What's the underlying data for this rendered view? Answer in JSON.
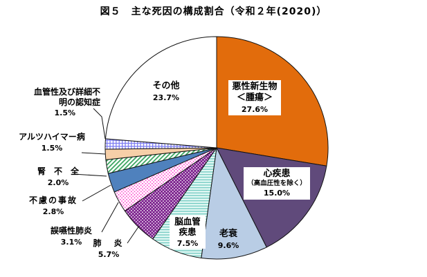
{
  "title": "図５　主な死因の構成割合（令和２年(2020)）",
  "chart_data": {
    "type": "pie",
    "title": "主な死因の構成割合（令和２年(2020)）",
    "unit": "%",
    "start_angle_deg": 0,
    "direction": "clockwise",
    "total": 100.0,
    "outline_color": "#111111",
    "slices": [
      {
        "name": "悪性新生物＜腫瘍＞",
        "label_lines": [
          "悪性新生物",
          "＜腫瘍＞"
        ],
        "value": 27.6,
        "pct_label": "27.6%",
        "fill": {
          "type": "solid",
          "color": "#E26C0C"
        }
      },
      {
        "name": "心疾患（高血圧性を除く）",
        "label_lines": [
          "心疾患",
          "（高血圧性を除く）"
        ],
        "value": 15.0,
        "pct_label": "15.0%",
        "fill": {
          "type": "solid",
          "color": "#604A7B"
        }
      },
      {
        "name": "老衰",
        "label_lines": [
          "老衰"
        ],
        "value": 9.6,
        "pct_label": "9.6%",
        "fill": {
          "type": "solid",
          "color": "#B9CDE5"
        }
      },
      {
        "name": "脳血管疾患",
        "label_lines": [
          "脳血管",
          "疾患"
        ],
        "value": 7.5,
        "pct_label": "7.5%",
        "fill": {
          "type": "hstripes",
          "color": "#6FC9C0",
          "bg": "#E7FAF6"
        }
      },
      {
        "name": "肺炎",
        "label_lines": [
          "肺　炎"
        ],
        "value": 5.7,
        "pct_label": "5.7%",
        "fill": {
          "type": "dots",
          "color": "#FFFFFF",
          "bg": "#7A1E8C"
        }
      },
      {
        "name": "誤嚥性肺炎",
        "label_lines": [
          "誤嚥性肺炎"
        ],
        "value": 3.1,
        "pct_label": "3.1%",
        "fill": {
          "type": "dots",
          "color": "#FF33CC",
          "bg": "#FFFFFF"
        }
      },
      {
        "name": "不慮の事故",
        "label_lines": [
          "不慮の事故"
        ],
        "value": 2.8,
        "pct_label": "2.8%",
        "fill": {
          "type": "solid",
          "color": "#4F81BD"
        }
      },
      {
        "name": "腎不全",
        "label_lines": [
          "腎　不　全"
        ],
        "value": 2.0,
        "pct_label": "2.0%",
        "fill": {
          "type": "diag",
          "color": "#3AA45F",
          "bg": "#FFFFFF"
        }
      },
      {
        "name": "アルツハイマー病",
        "label_lines": [
          "アルツハイマー病"
        ],
        "value": 1.5,
        "pct_label": "1.5%",
        "fill": {
          "type": "solid",
          "color": "#F6CFA8"
        }
      },
      {
        "name": "血管性及び詳細不明の認知症",
        "label_lines": [
          "血管性及び詳細不",
          "明の認知症"
        ],
        "value": 1.5,
        "pct_label": "1.5%",
        "fill": {
          "type": "grid",
          "color": "#7D7DF2",
          "bg": "#FFFFFF"
        }
      },
      {
        "name": "その他",
        "label_lines": [
          "その他"
        ],
        "value": 23.7,
        "pct_label": "23.7%",
        "fill": {
          "type": "solid",
          "color": "#FFFFFF"
        }
      }
    ]
  }
}
